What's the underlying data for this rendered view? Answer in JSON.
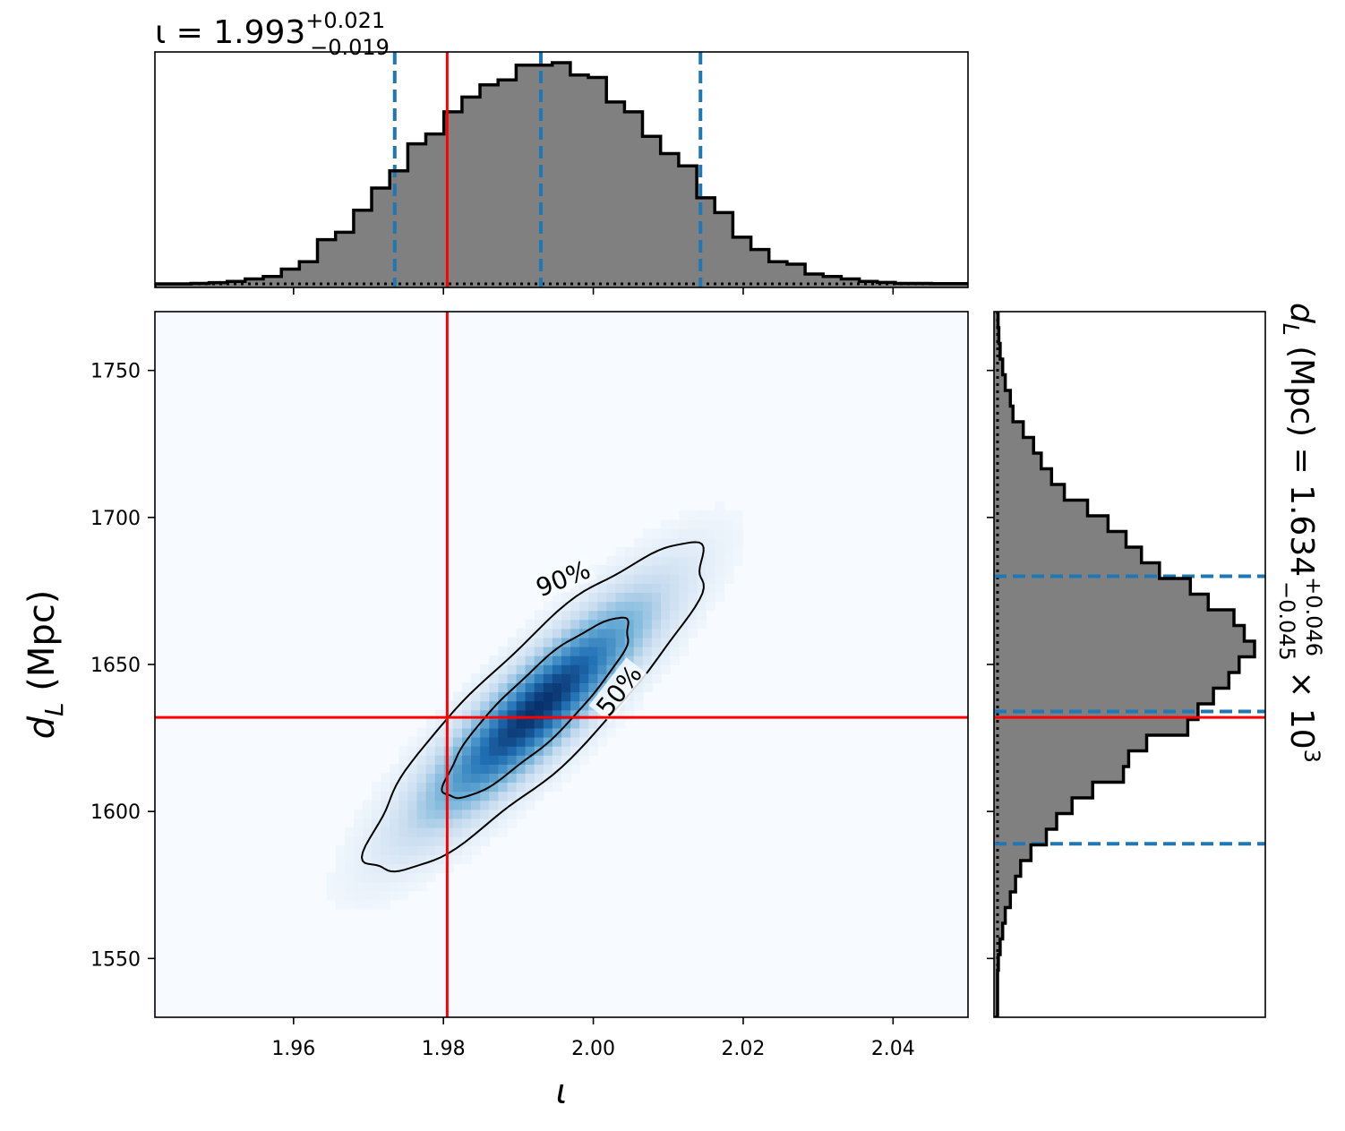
{
  "chart_data": {
    "type": "corner",
    "title_top": {
      "prefix": "ι = 1.993",
      "sup": "+0.021",
      "sub": "−0.019"
    },
    "title_right": {
      "prefix": "d",
      "prefix_sub": "L",
      "mid": " (Mpc) = 1.634",
      "sup": "+0.046",
      "sub": "−0.045",
      "suffix": " × 10",
      "suffix_sup": "3"
    },
    "xlabel": "ι",
    "ylabel": {
      "main": "d",
      "sub": "L",
      "rest": " (Mpc)"
    },
    "xlim": [
      1.9415,
      2.05
    ],
    "ylim": [
      1530,
      1770
    ],
    "xticks": [
      {
        "v": 1.96,
        "label": "1.96"
      },
      {
        "v": 1.98,
        "label": "1.98"
      },
      {
        "v": 2.0,
        "label": "2.00"
      },
      {
        "v": 2.02,
        "label": "2.02"
      },
      {
        "v": 2.04,
        "label": "2.04"
      }
    ],
    "yticks": [
      {
        "v": 1550,
        "label": "1550"
      },
      {
        "v": 1600,
        "label": "1600"
      },
      {
        "v": 1650,
        "label": "1650"
      },
      {
        "v": 1700,
        "label": "1700"
      },
      {
        "v": 1750,
        "label": "1750"
      }
    ],
    "injection": {
      "iota": 1.9805,
      "dL": 1632
    },
    "quantiles_iota": [
      1.9735,
      1.993,
      2.0143
    ],
    "quantiles_dL": [
      1589,
      1634,
      1680
    ],
    "posterior_2d": {
      "mean": [
        1.9925,
        1635
      ],
      "sigma": [
        0.0105,
        26
      ],
      "rho": 0.88
    },
    "contour_labels": [
      {
        "text": "90%",
        "at": [
          1.996,
          1679
        ],
        "angle": -22
      },
      {
        "text": "50%",
        "at": [
          2.0035,
          1641
        ],
        "angle": -52
      }
    ],
    "hist_iota": {
      "edges_start": 1.9415,
      "bin_width": 0.00241,
      "counts": [
        0,
        0,
        0.2,
        0.5,
        1,
        2,
        3,
        6,
        9,
        18,
        21,
        30,
        39,
        46,
        57,
        61,
        70,
        76,
        81,
        83,
        89,
        89,
        90,
        85,
        84,
        74,
        70,
        60,
        53,
        48,
        35,
        29,
        19,
        14,
        9,
        8,
        4,
        3,
        2,
        1,
        0.6,
        0.2,
        0.2,
        0.1,
        0.1
      ]
    },
    "hist_dL": {
      "edges_start": 1530,
      "bin_width": 5.33,
      "counts": [
        0,
        0,
        0,
        0.3,
        1,
        2,
        3,
        5,
        7,
        9,
        13,
        19,
        23,
        29,
        37,
        49,
        51,
        58,
        74,
        78,
        84,
        90,
        94,
        100,
        96,
        92,
        82,
        75,
        63,
        56,
        50,
        43,
        35,
        26,
        21,
        17,
        14,
        10,
        6,
        5,
        3,
        2,
        1,
        0.5,
        0.2,
        0,
        0
      ]
    },
    "colors": {
      "density": "#08519c",
      "density_low": "#f7fbff",
      "hist_fill": "#808080",
      "injection": "#ff0000",
      "quantile": "#1f77b4"
    }
  }
}
